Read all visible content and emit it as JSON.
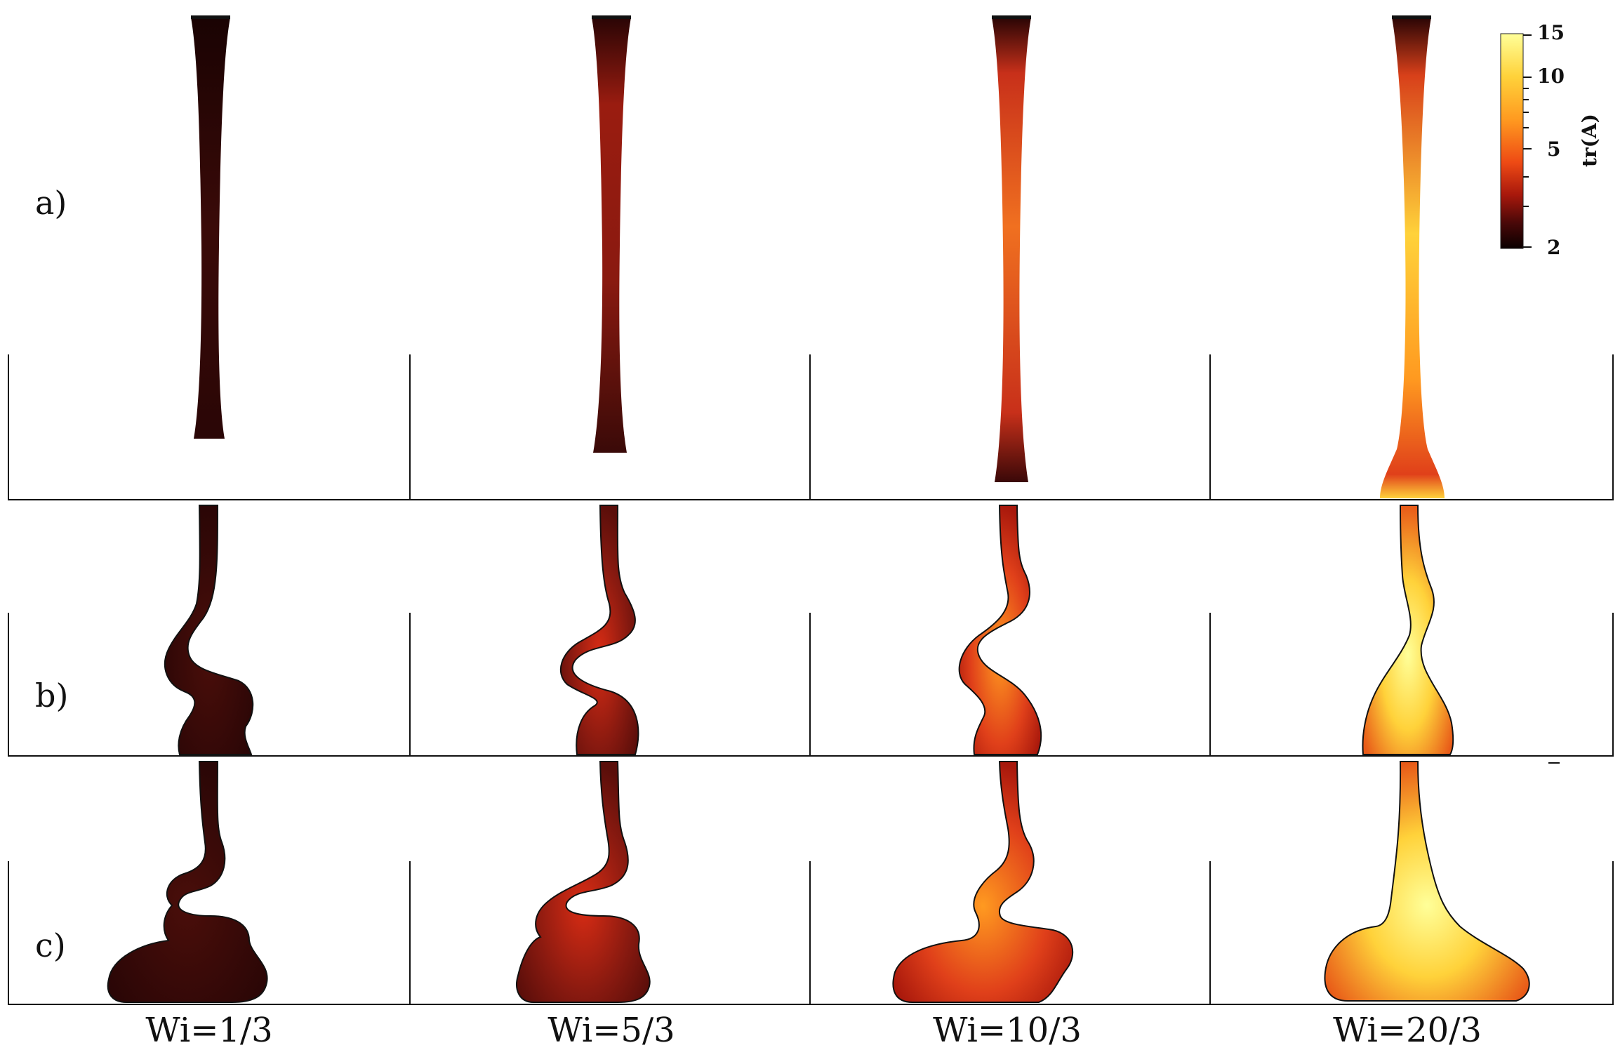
{
  "rows": [
    {
      "label": "a)"
    },
    {
      "label": "b)"
    },
    {
      "label": "c)"
    }
  ],
  "columns": [
    {
      "label": "Wi=1/3"
    },
    {
      "label": "Wi=5/3"
    },
    {
      "label": "Wi=10/3"
    },
    {
      "label": "Wi=20/3"
    }
  ],
  "colorbar": {
    "title": "tr(A)",
    "ticks": [
      "15",
      "10",
      "5",
      "2"
    ],
    "colors": [
      "#ffff99",
      "#ffd23a",
      "#ff9a20",
      "#ee4a14",
      "#a8180c",
      "#4a0808",
      "#0a0000"
    ]
  },
  "palette": {
    "wi_1_3": "#3a0a08",
    "wi_5_3": "#8a1a10",
    "wi_10_3": "#d9381a",
    "wi_20_3": "#ffc83a",
    "frame": "#111111"
  }
}
